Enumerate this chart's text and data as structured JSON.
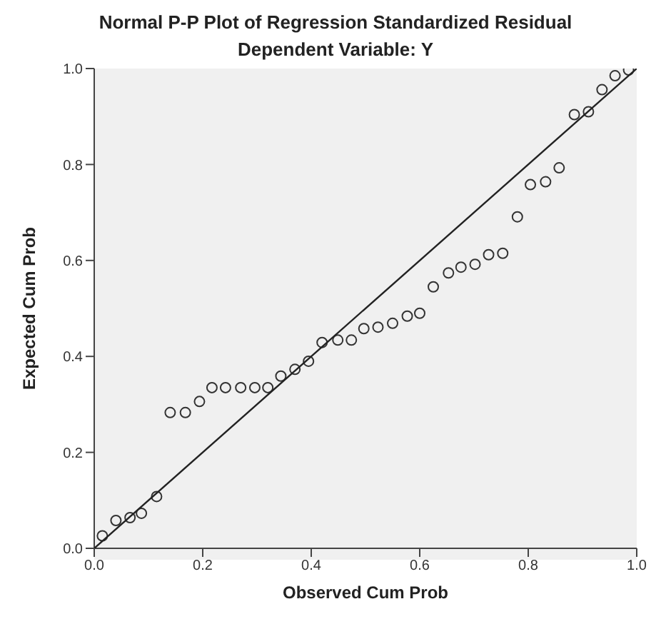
{
  "chart_data": {
    "type": "scatter",
    "title": "Normal P-P Plot of Regression Standardized Residual",
    "subtitle": "Dependent Variable: Y",
    "xlabel": "Observed Cum Prob",
    "ylabel": "Expected Cum Prob",
    "xlim": [
      0,
      1
    ],
    "ylim": [
      0,
      1
    ],
    "xticks": [
      {
        "value": 0,
        "label": "0.0"
      },
      0.2,
      0.4,
      0.6,
      0.8,
      {
        "value": 1,
        "label": "1.0"
      }
    ],
    "yticks": [
      {
        "value": 0,
        "label": "0.0"
      },
      0.2,
      0.4,
      0.6,
      0.8,
      {
        "value": 1,
        "label": "1.0"
      }
    ],
    "grid": false,
    "series": [
      {
        "marker": "circle",
        "color": "#333333",
        "x": [
          0.015,
          0.04,
          0.066,
          0.087,
          0.115,
          0.14,
          0.168,
          0.194,
          0.217,
          0.242,
          0.27,
          0.296,
          0.32,
          0.344,
          0.37,
          0.395,
          0.42,
          0.449,
          0.474,
          0.497,
          0.523,
          0.55,
          0.577,
          0.6,
          0.625,
          0.653,
          0.676,
          0.702,
          0.727,
          0.753,
          0.78,
          0.804,
          0.832,
          0.857,
          0.885,
          0.911,
          0.936,
          0.96,
          0.985
        ],
        "values": [
          0.026,
          0.058,
          0.064,
          0.073,
          0.108,
          0.283,
          0.283,
          0.306,
          0.335,
          0.335,
          0.335,
          0.335,
          0.335,
          0.359,
          0.373,
          0.39,
          0.429,
          0.434,
          0.434,
          0.458,
          0.461,
          0.469,
          0.484,
          0.49,
          0.545,
          0.574,
          0.586,
          0.592,
          0.612,
          0.615,
          0.691,
          0.758,
          0.764,
          0.793,
          0.904,
          0.91,
          0.956,
          0.985,
          0.997
        ]
      },
      {
        "type": "line",
        "color": "#222222",
        "x": [
          0,
          1
        ],
        "values": [
          0,
          1
        ]
      }
    ]
  }
}
